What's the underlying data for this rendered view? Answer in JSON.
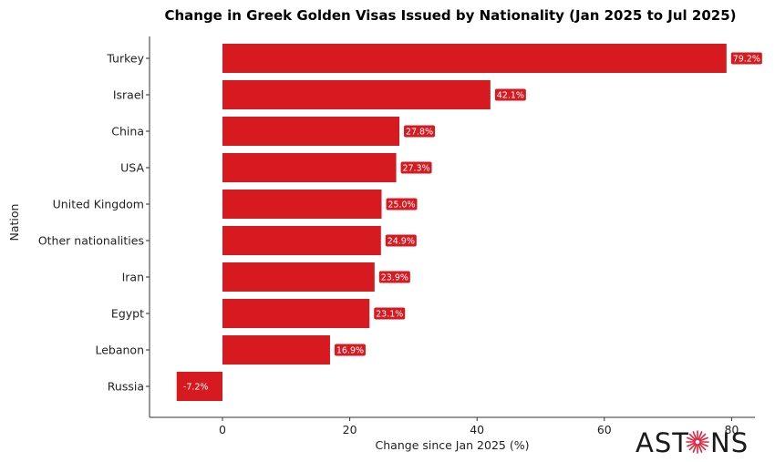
{
  "chart_data": {
    "type": "bar",
    "orientation": "horizontal",
    "title": "Change in Greek Golden Visas Issued by Nationality (Jan 2025 to Jul 2025)",
    "xlabel": "Change since Jan 2025 (%)",
    "ylabel": "Nation",
    "categories": [
      "Turkey",
      "Israel",
      "China",
      "USA",
      "United Kingdom",
      "Other nationalities",
      "Iran",
      "Egypt",
      "Lebanon",
      "Russia"
    ],
    "values": [
      79.2,
      42.1,
      27.8,
      27.3,
      25.0,
      24.9,
      23.9,
      23.1,
      16.9,
      -7.2
    ],
    "value_labels": [
      "79.2%",
      "42.1%",
      "27.8%",
      "27.3%",
      "25.0%",
      "24.9%",
      "23.9%",
      "23.1%",
      "16.9%",
      "-7.2%"
    ],
    "xlim": [
      -11.5,
      84
    ],
    "xticks": [
      0,
      20,
      40,
      60,
      80
    ],
    "grid": false,
    "legend": "none",
    "bar_color": "#d71920"
  },
  "logo": {
    "text_left": "AST",
    "text_right": "NS",
    "accent_color": "#e0223f"
  }
}
